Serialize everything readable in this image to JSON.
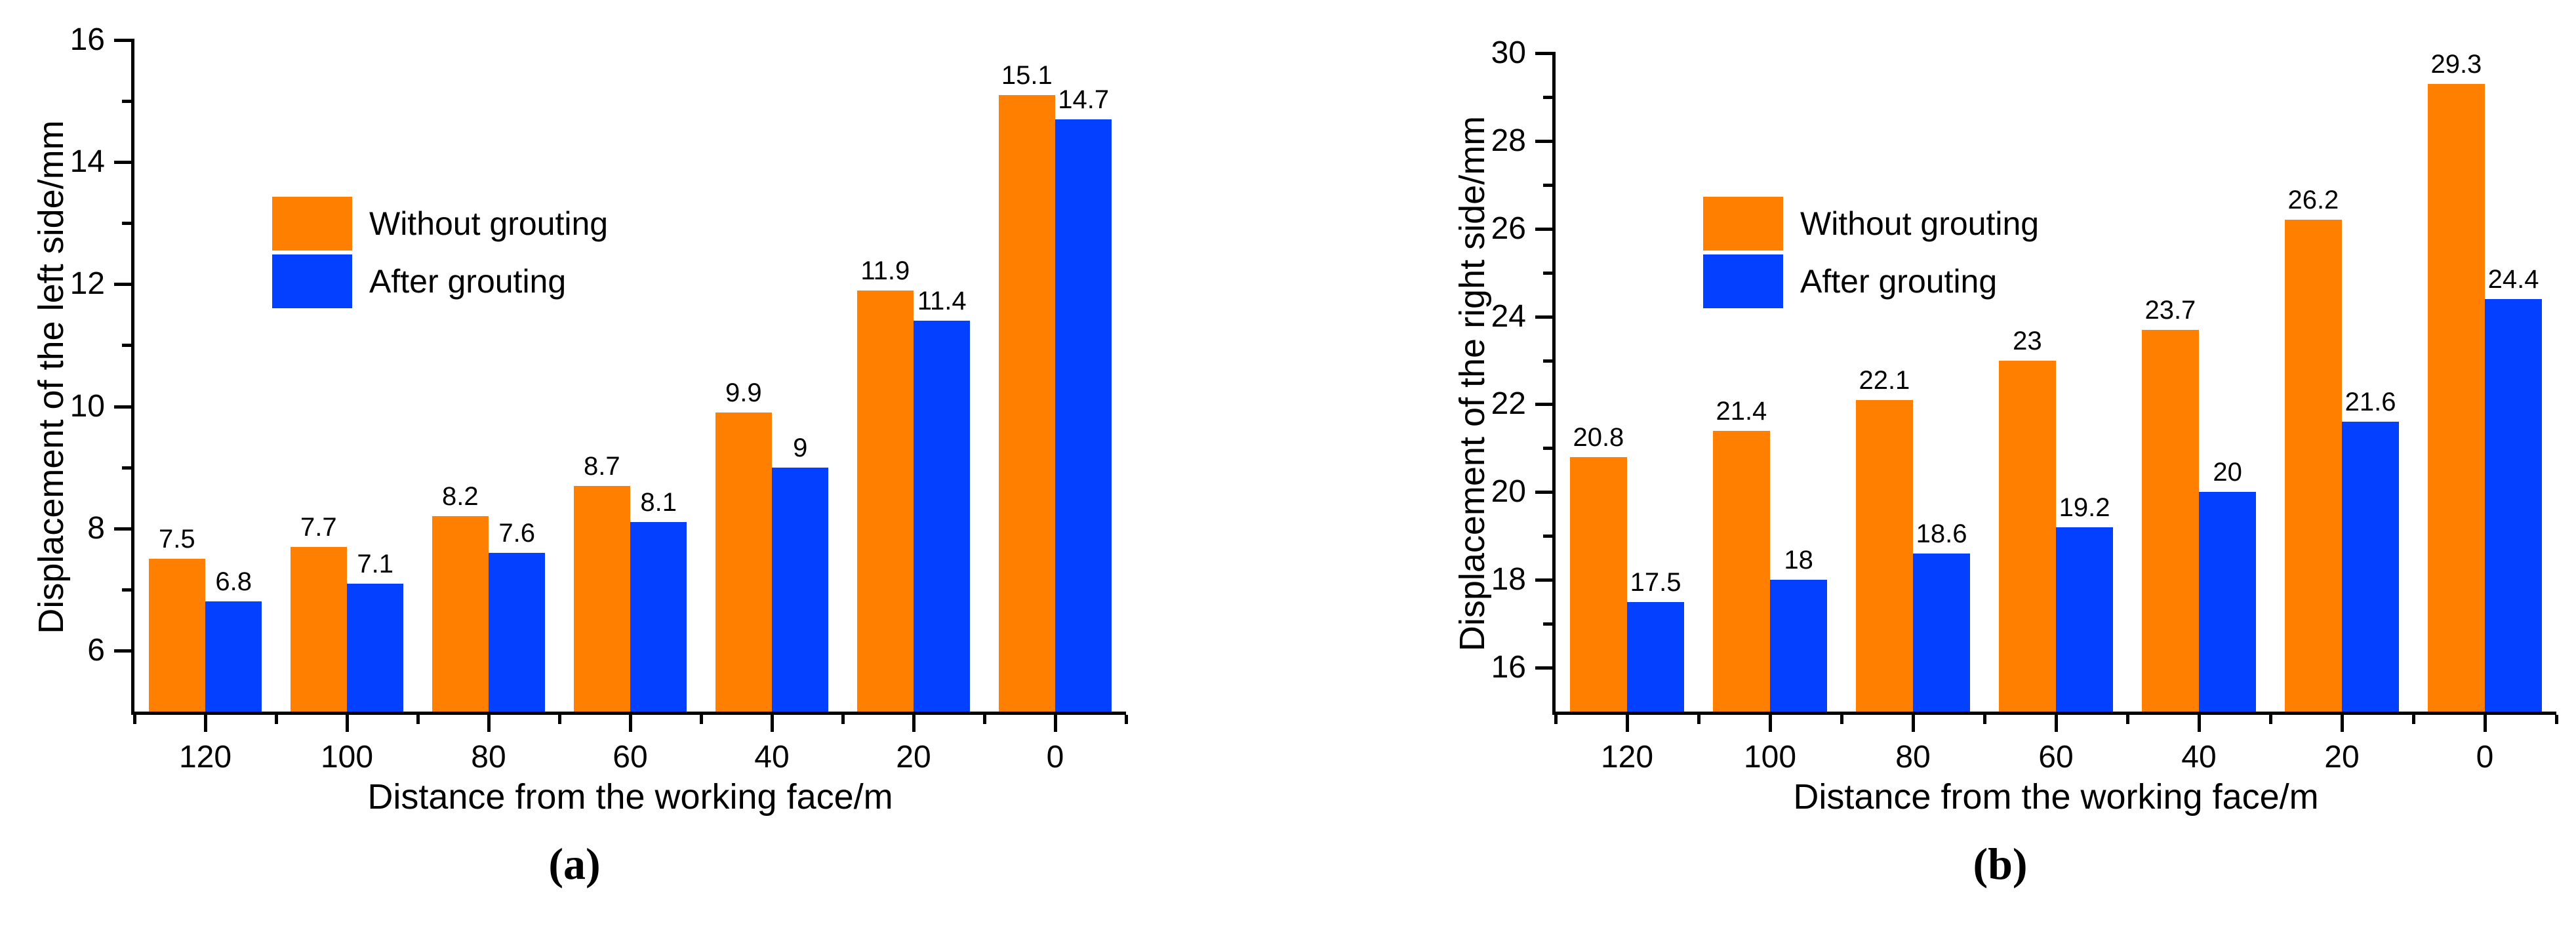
{
  "figure": {
    "background": "#FFFFFF",
    "panel_labels": [
      "(a)",
      "(b)"
    ]
  },
  "colors": {
    "without_grouting": "#FF8000",
    "after_grouting": "#0340FF",
    "axis": "#000000",
    "text": "#000000"
  },
  "chart_data": [
    {
      "type": "bar",
      "panel_label": "(a)",
      "title": "",
      "xlabel": "Distance from the working face/m",
      "ylabel": "Displacement of the left side/mm",
      "categories": [
        "120",
        "100",
        "80",
        "60",
        "40",
        "20",
        "0"
      ],
      "series": [
        {
          "name": "Without grouting",
          "color": "#FF8000",
          "values": [
            7.5,
            7.7,
            8.2,
            8.7,
            9.9,
            11.9,
            15.1
          ],
          "labels": [
            "7.5",
            "7.7",
            "8.2",
            "8.7",
            "9.9",
            "11.9",
            "15.1"
          ]
        },
        {
          "name": "After grouting",
          "color": "#0340FF",
          "values": [
            6.8,
            7.1,
            7.6,
            8.1,
            9,
            11.4,
            14.7
          ],
          "labels": [
            "6.8",
            "7.1",
            "7.6",
            "8.1",
            "9",
            "11.4",
            "14.7"
          ]
        }
      ],
      "ylim": [
        5,
        16
      ],
      "yticks_major": [
        6,
        8,
        10,
        12,
        14,
        16
      ],
      "yticks_minor": [
        7,
        9,
        11,
        13,
        15
      ],
      "legend_position": "upper-left-inside",
      "grid": false
    },
    {
      "type": "bar",
      "panel_label": "(b)",
      "title": "",
      "xlabel": "Distance from the working face/m",
      "ylabel": "Displacement of the right side/mm",
      "categories": [
        "120",
        "100",
        "80",
        "60",
        "40",
        "20",
        "0"
      ],
      "series": [
        {
          "name": "Without grouting",
          "color": "#FF8000",
          "values": [
            20.8,
            21.4,
            22.1,
            23,
            23.7,
            26.2,
            29.3
          ],
          "labels": [
            "20.8",
            "21.4",
            "22.1",
            "23",
            "23.7",
            "26.2",
            "29.3"
          ]
        },
        {
          "name": "After grouting",
          "color": "#0340FF",
          "values": [
            17.5,
            18,
            18.6,
            19.2,
            20,
            21.6,
            24.4
          ],
          "labels": [
            "17.5",
            "18",
            "18.6",
            "19.2",
            "20",
            "21.6",
            "24.4"
          ]
        }
      ],
      "ylim": [
        15,
        30
      ],
      "yticks_major": [
        16,
        18,
        20,
        22,
        24,
        26,
        28,
        30
      ],
      "yticks_minor": [
        17,
        19,
        21,
        23,
        25,
        27,
        29
      ],
      "legend_position": "upper-left-inside",
      "grid": false
    }
  ]
}
